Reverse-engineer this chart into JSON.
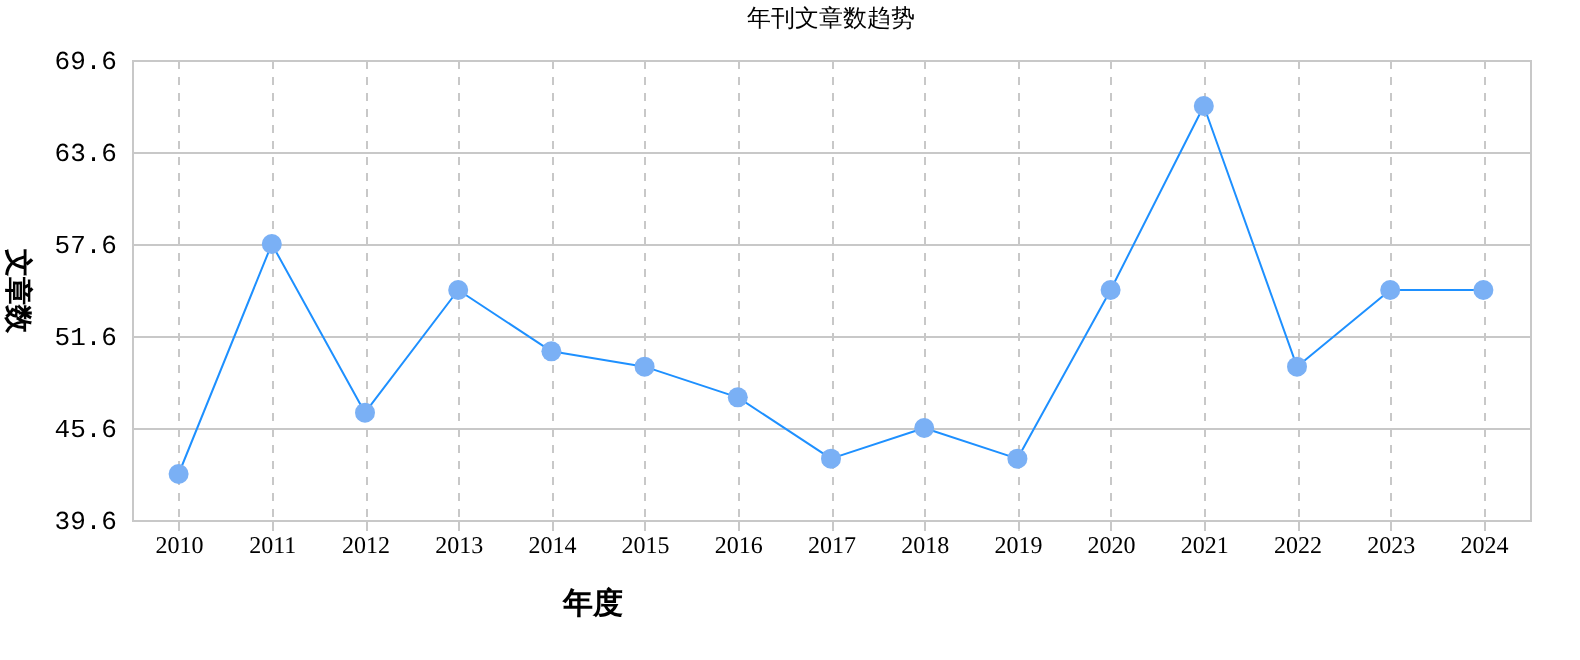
{
  "chart_data": {
    "type": "line",
    "title": "年刊文章数趋势",
    "xlabel": "年度",
    "ylabel": "文章数",
    "categories": [
      "2010",
      "2011",
      "2012",
      "2013",
      "2014",
      "2015",
      "2016",
      "2017",
      "2018",
      "2019",
      "2020",
      "2021",
      "2022",
      "2023",
      "2024"
    ],
    "series": [
      {
        "color": "#1e90ff",
        "values": [
          42.6,
          57.6,
          46.6,
          54.6,
          50.6,
          49.6,
          47.6,
          43.6,
          45.6,
          43.6,
          54.6,
          66.6,
          49.6,
          54.6,
          54.6
        ]
      }
    ],
    "ylim": [
      39.6,
      69.6
    ],
    "yticks": [
      39.6,
      45.6,
      51.6,
      57.6,
      63.6,
      69.6
    ],
    "grid": true,
    "marker": "circle",
    "line_style": "solid",
    "legend": false
  }
}
